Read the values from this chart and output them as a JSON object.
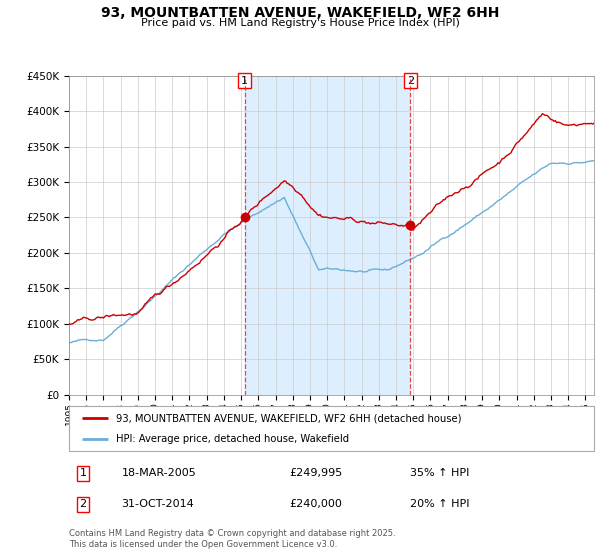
{
  "title": "93, MOUNTBATTEN AVENUE, WAKEFIELD, WF2 6HH",
  "subtitle": "Price paid vs. HM Land Registry's House Price Index (HPI)",
  "legend_line1": "93, MOUNTBATTEN AVENUE, WAKEFIELD, WF2 6HH (detached house)",
  "legend_line2": "HPI: Average price, detached house, Wakefield",
  "sale1_date": "18-MAR-2005",
  "sale1_price": 249995,
  "sale1_pct": "35% ↑ HPI",
  "sale1_year": 2005.21,
  "sale2_date": "31-OCT-2014",
  "sale2_price": 240000,
  "sale2_pct": "20% ↑ HPI",
  "sale2_year": 2014.83,
  "copyright": "Contains HM Land Registry data © Crown copyright and database right 2025.\nThis data is licensed under the Open Government Licence v3.0.",
  "hpi_color": "#6baed6",
  "property_color": "#cc0000",
  "shade_color": "#ddeeff",
  "ylim": [
    0,
    450000
  ],
  "xlim_start": 1995.0,
  "xlim_end": 2025.5,
  "background_color": "#ffffff",
  "grid_color": "#cccccc"
}
